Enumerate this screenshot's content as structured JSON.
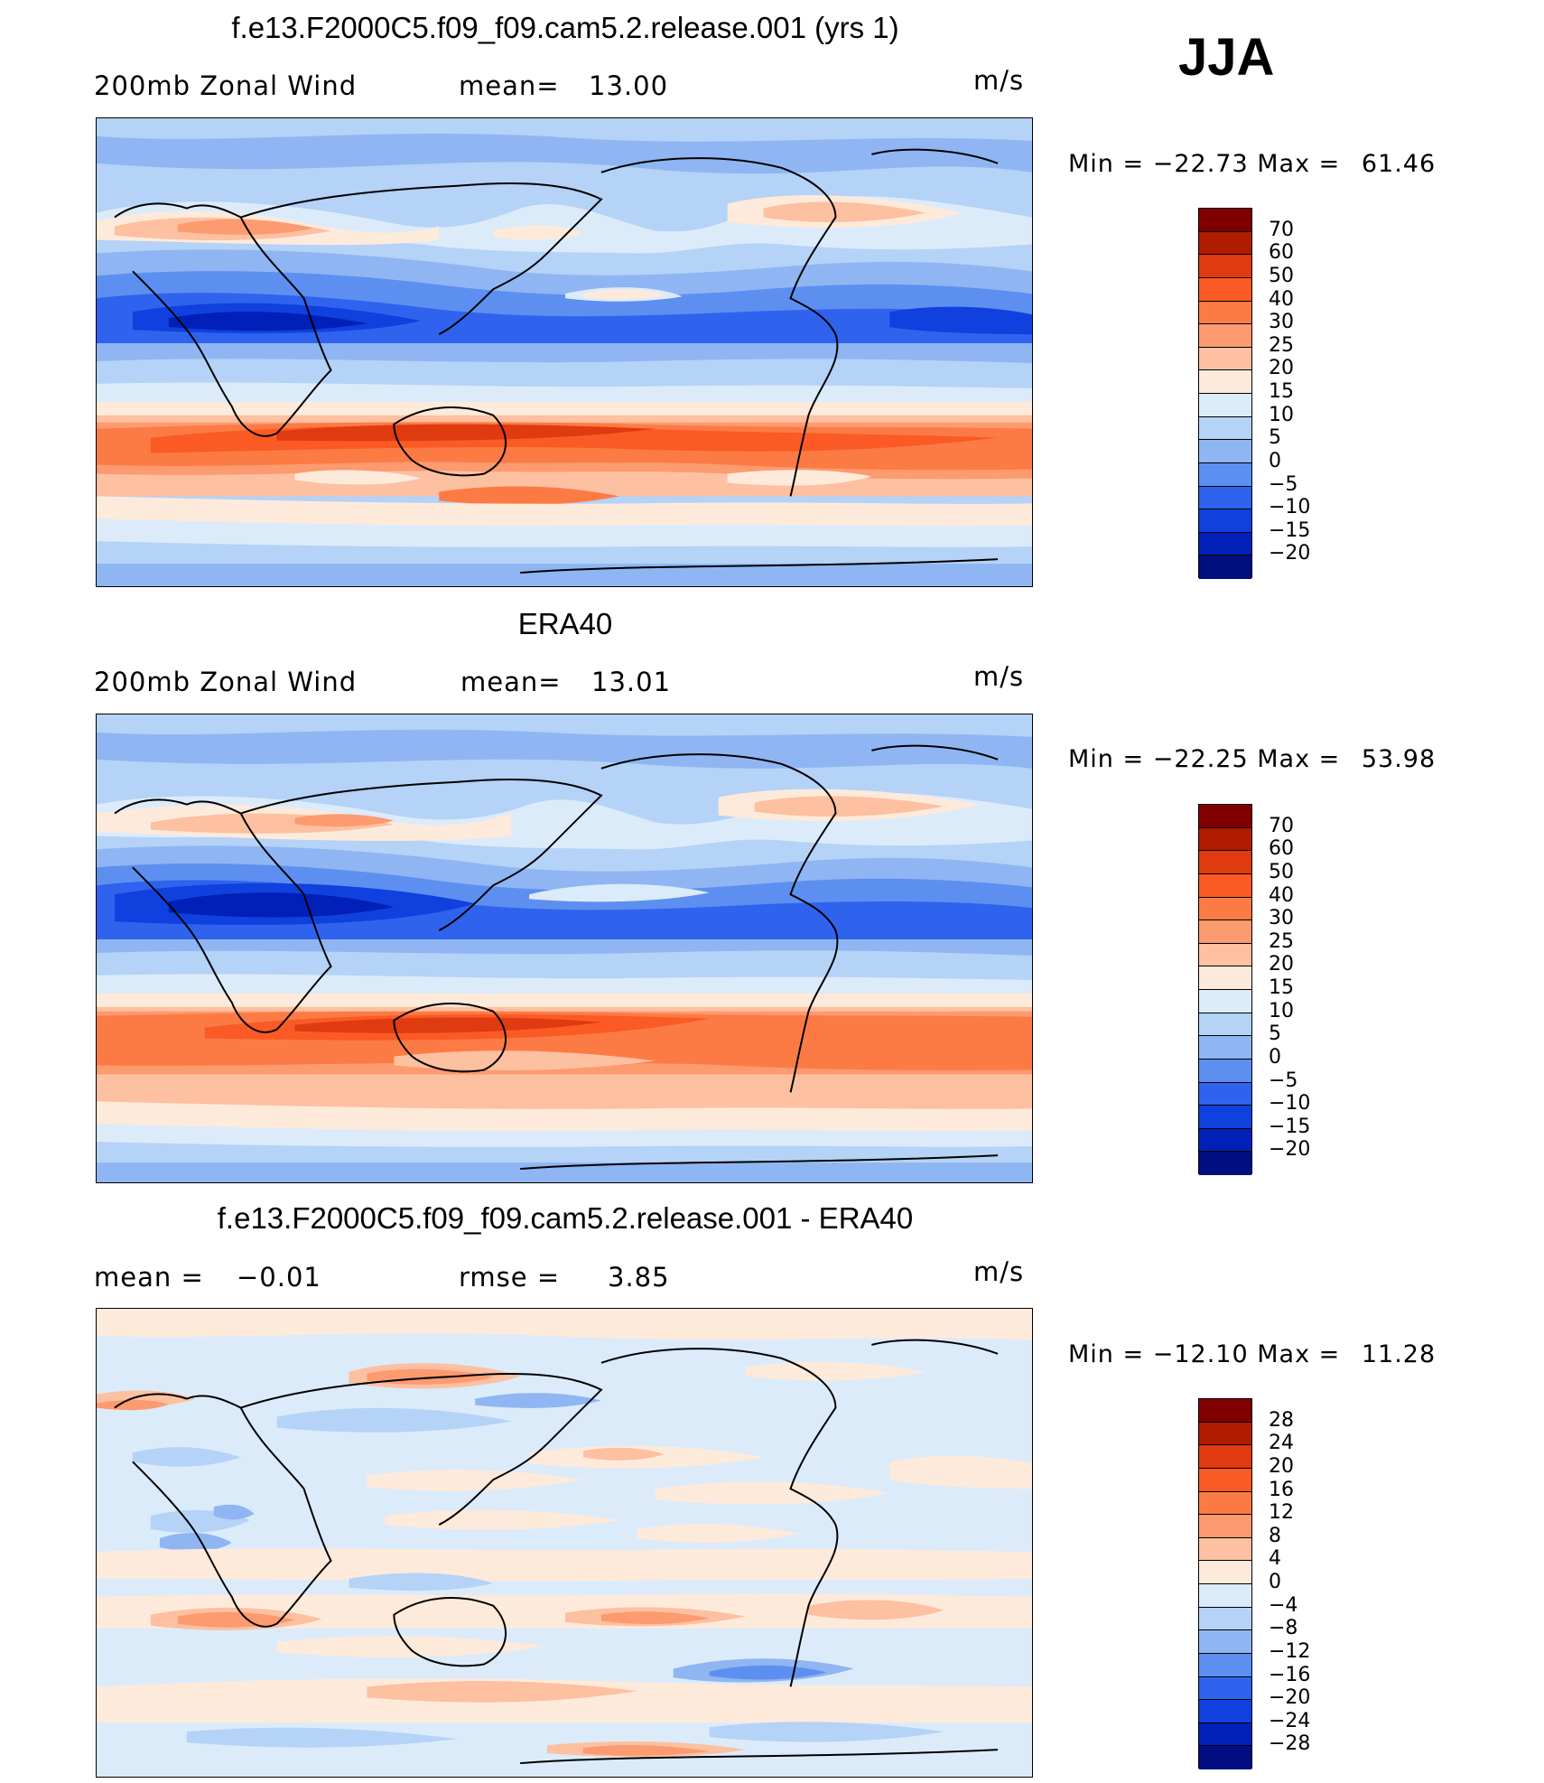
{
  "season": "JJA",
  "panels": [
    {
      "title": "f.e13.F2000C5.f09_f09.cam5.2.release.001 (yrs 1)",
      "left_label": "200mb Zonal Wind",
      "mid_label": "mean=",
      "mid_value": "13.00",
      "units": "m/s",
      "min_label": "Min =",
      "min_value": "−22.73",
      "max_label": "Max =",
      "max_value": "61.46",
      "colorbar_levels": [
        "70",
        "60",
        "50",
        "40",
        "30",
        "25",
        "20",
        "15",
        "10",
        "5",
        "0",
        "−5",
        "−10",
        "−15",
        "−20"
      ]
    },
    {
      "title": "ERA40",
      "left_label": "200mb Zonal Wind",
      "mid_label": "mean=",
      "mid_value": "13.01",
      "units": "m/s",
      "min_label": "Min =",
      "min_value": "−22.25",
      "max_label": "Max =",
      "max_value": "53.98",
      "colorbar_levels": [
        "70",
        "60",
        "50",
        "40",
        "30",
        "25",
        "20",
        "15",
        "10",
        "5",
        "0",
        "−5",
        "−10",
        "−15",
        "−20"
      ]
    },
    {
      "title": "f.e13.F2000C5.f09_f09.cam5.2.release.001 - ERA40",
      "left_label": "mean =",
      "left_value": "−0.01",
      "mid_label": "rmse =",
      "mid_value": "3.85",
      "units": "m/s",
      "min_label": "Min =",
      "min_value": "−12.10",
      "max_label": "Max =",
      "max_value": "11.28",
      "colorbar_levels": [
        "28",
        "24",
        "20",
        "16",
        "12",
        "8",
        "4",
        "0",
        "−4",
        "−8",
        "−12",
        "−16",
        "−20",
        "−24",
        "−28"
      ]
    }
  ],
  "colors": {
    "abs_scale": [
      "#800000",
      "#b01c00",
      "#e03a10",
      "#fb5a25",
      "#fc7b45",
      "#fc9a70",
      "#fdc0a0",
      "#feeadb",
      "#dcebfa",
      "#b5d2f7",
      "#8fb6f3",
      "#5d8ff0",
      "#2f63ee",
      "#1040de",
      "#0020b8",
      "#000e80"
    ],
    "diff_scale": [
      "#800000",
      "#b01c00",
      "#e03a10",
      "#fb5a25",
      "#fc7b45",
      "#fc9a70",
      "#fdc0a0",
      "#feeadb",
      "#dcebfa",
      "#b5d2f7",
      "#8fb6f3",
      "#5d8ff0",
      "#2f63ee",
      "#1040de",
      "#0020b8",
      "#000e80"
    ]
  }
}
